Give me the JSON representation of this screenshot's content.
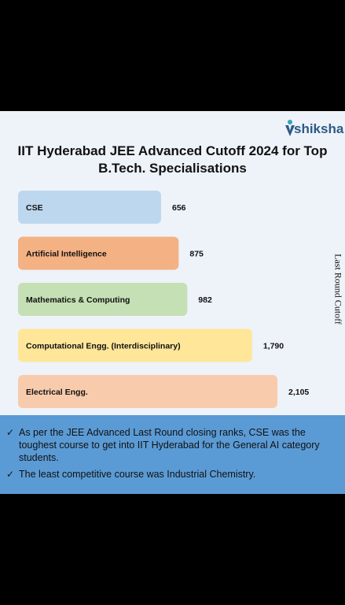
{
  "logo": {
    "text": "shiksha"
  },
  "title": "IIT Hyderabad JEE Advanced Cutoff 2024 for Top B.Tech. Specialisations",
  "chart_data": {
    "type": "bar",
    "orientation": "horizontal",
    "title": "IIT Hyderabad JEE Advanced Cutoff 2024 for Top B.Tech. Specialisations",
    "categories": [
      "CSE",
      "Artificial Intelligence",
      "Mathematics & Computing",
      "Computational Engg. (Interdisciplinary)",
      "Electrical Engg."
    ],
    "values": [
      656,
      875,
      982,
      1790,
      2105
    ],
    "value_labels": [
      "656",
      "875",
      "982",
      "1,790",
      "2,105"
    ],
    "bar_colors": [
      "#bdd7ee",
      "#f4b183",
      "#c5e0b4",
      "#ffe699",
      "#f8cbad"
    ],
    "ylabel": "Last Round Cutoff",
    "grid": false,
    "legend": "none"
  },
  "notes": [
    "As per the JEE Advanced Last Round closing ranks, CSE was the toughest course to get into IIT Hyderabad for the General AI category students.",
    "The least competitive course was Industrial Chemistry."
  ],
  "check_symbol": "✓",
  "colors": {
    "notes_bg": "#5b9bd5",
    "card_bg": "#eef2f9",
    "logo_blue": "#2c5a86",
    "logo_teal": "#36a3b5"
  }
}
